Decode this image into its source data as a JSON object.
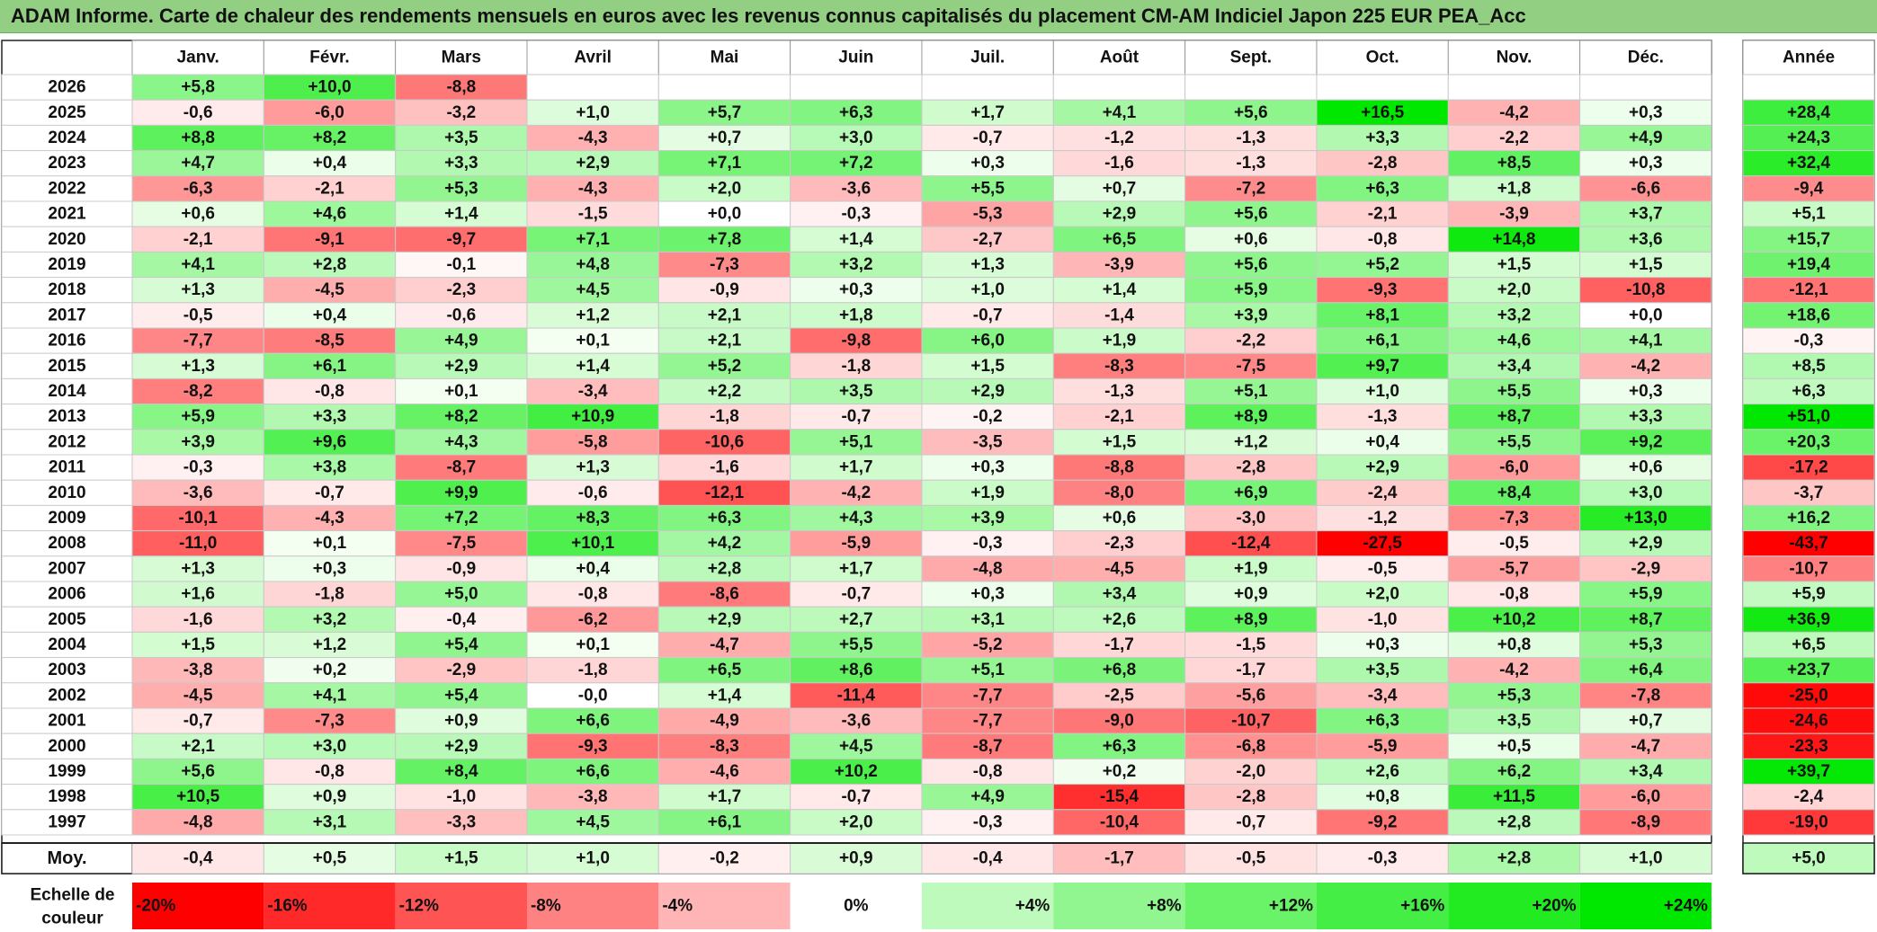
{
  "title": "ADAM Informe. Carte de chaleur des rendements mensuels en euros avec les revenus connus capitalisés du placement CM-AM Indiciel Japon 225 EUR PEA_Acc",
  "chart_data": {
    "type": "heatmap",
    "columns": [
      "Janv.",
      "Févr.",
      "Mars",
      "Avril",
      "Mai",
      "Juin",
      "Juil.",
      "Août",
      "Sept.",
      "Oct.",
      "Nov.",
      "Déc."
    ],
    "year_column": "Année",
    "average_label": "Moy.",
    "scale_label": [
      "Echelle de",
      "couleur"
    ],
    "rows": [
      {
        "year": "2026",
        "values": [
          "+5,8",
          "+10,0",
          "-8,8",
          "",
          "",
          "",
          "",
          "",
          "",
          "",
          "",
          ""
        ],
        "annual": ""
      },
      {
        "year": "2025",
        "values": [
          "-0,6",
          "-6,0",
          "-3,2",
          "+1,0",
          "+5,7",
          "+6,3",
          "+1,7",
          "+4,1",
          "+5,6",
          "+16,5",
          "-4,2",
          "+0,3"
        ],
        "annual": "+28,4"
      },
      {
        "year": "2024",
        "values": [
          "+8,8",
          "+8,2",
          "+3,5",
          "-4,3",
          "+0,7",
          "+3,0",
          "-0,7",
          "-1,2",
          "-1,3",
          "+3,3",
          "-2,2",
          "+4,9"
        ],
        "annual": "+24,3"
      },
      {
        "year": "2023",
        "values": [
          "+4,7",
          "+0,4",
          "+3,3",
          "+2,9",
          "+7,1",
          "+7,2",
          "+0,3",
          "-1,6",
          "-1,3",
          "-2,8",
          "+8,5",
          "+0,3"
        ],
        "annual": "+32,4"
      },
      {
        "year": "2022",
        "values": [
          "-6,3",
          "-2,1",
          "+5,3",
          "-4,3",
          "+2,0",
          "-3,6",
          "+5,5",
          "+0,7",
          "-7,2",
          "+6,3",
          "+1,8",
          "-6,6"
        ],
        "annual": "-9,4"
      },
      {
        "year": "2021",
        "values": [
          "+0,6",
          "+4,6",
          "+1,4",
          "-1,5",
          "+0,0",
          "-0,3",
          "-5,3",
          "+2,9",
          "+5,6",
          "-2,1",
          "-3,9",
          "+3,7"
        ],
        "annual": "+5,1"
      },
      {
        "year": "2020",
        "values": [
          "-2,1",
          "-9,1",
          "-9,7",
          "+7,1",
          "+7,8",
          "+1,4",
          "-2,7",
          "+6,5",
          "+0,6",
          "-0,8",
          "+14,8",
          "+3,6"
        ],
        "annual": "+15,7"
      },
      {
        "year": "2019",
        "values": [
          "+4,1",
          "+2,8",
          "-0,1",
          "+4,8",
          "-7,3",
          "+3,2",
          "+1,3",
          "-3,9",
          "+5,6",
          "+5,2",
          "+1,5",
          "+1,5"
        ],
        "annual": "+19,4"
      },
      {
        "year": "2018",
        "values": [
          "+1,3",
          "-4,5",
          "-2,3",
          "+4,5",
          "-0,9",
          "+0,3",
          "+1,0",
          "+1,4",
          "+5,9",
          "-9,3",
          "+2,0",
          "-10,8"
        ],
        "annual": "-12,1"
      },
      {
        "year": "2017",
        "values": [
          "-0,5",
          "+0,4",
          "-0,6",
          "+1,2",
          "+2,1",
          "+1,8",
          "-0,7",
          "-1,4",
          "+3,9",
          "+8,1",
          "+3,2",
          "+0,0"
        ],
        "annual": "+18,6"
      },
      {
        "year": "2016",
        "values": [
          "-7,7",
          "-8,5",
          "+4,9",
          "+0,1",
          "+2,1",
          "-9,8",
          "+6,0",
          "+1,9",
          "-2,2",
          "+6,1",
          "+4,6",
          "+4,1"
        ],
        "annual": "-0,3"
      },
      {
        "year": "2015",
        "values": [
          "+1,3",
          "+6,1",
          "+2,9",
          "+1,4",
          "+5,2",
          "-1,8",
          "+1,5",
          "-8,3",
          "-7,5",
          "+9,7",
          "+3,4",
          "-4,2"
        ],
        "annual": "+8,5"
      },
      {
        "year": "2014",
        "values": [
          "-8,2",
          "-0,8",
          "+0,1",
          "-3,4",
          "+2,2",
          "+3,5",
          "+2,9",
          "-1,3",
          "+5,1",
          "+1,0",
          "+5,5",
          "+0,3"
        ],
        "annual": "+6,3"
      },
      {
        "year": "2013",
        "values": [
          "+5,9",
          "+3,3",
          "+8,2",
          "+10,9",
          "-1,8",
          "-0,7",
          "-0,2",
          "-2,1",
          "+8,9",
          "-1,3",
          "+8,7",
          "+3,3"
        ],
        "annual": "+51,0"
      },
      {
        "year": "2012",
        "values": [
          "+3,9",
          "+9,6",
          "+4,3",
          "-5,8",
          "-10,6",
          "+5,1",
          "-3,5",
          "+1,5",
          "+1,2",
          "+0,4",
          "+5,5",
          "+9,2"
        ],
        "annual": "+20,3"
      },
      {
        "year": "2011",
        "values": [
          "-0,3",
          "+3,8",
          "-8,7",
          "+1,3",
          "-1,6",
          "+1,7",
          "+0,3",
          "-8,8",
          "-2,8",
          "+2,9",
          "-6,0",
          "+0,6"
        ],
        "annual": "-17,2"
      },
      {
        "year": "2010",
        "values": [
          "-3,6",
          "-0,7",
          "+9,9",
          "-0,6",
          "-12,1",
          "-4,2",
          "+1,9",
          "-8,0",
          "+6,9",
          "-2,4",
          "+8,4",
          "+3,0"
        ],
        "annual": "-3,7"
      },
      {
        "year": "2009",
        "values": [
          "-10,1",
          "-4,3",
          "+7,2",
          "+8,3",
          "+6,3",
          "+4,3",
          "+3,9",
          "+0,6",
          "-3,0",
          "-1,2",
          "-7,3",
          "+13,0"
        ],
        "annual": "+16,2"
      },
      {
        "year": "2008",
        "values": [
          "-11,0",
          "+0,1",
          "-7,5",
          "+10,1",
          "+4,2",
          "-5,9",
          "-0,3",
          "-2,3",
          "-12,4",
          "-27,5",
          "-0,5",
          "+2,9"
        ],
        "annual": "-43,7"
      },
      {
        "year": "2007",
        "values": [
          "+1,3",
          "+0,3",
          "-0,9",
          "+0,4",
          "+2,8",
          "+1,7",
          "-4,8",
          "-4,5",
          "+1,9",
          "-0,5",
          "-5,7",
          "-2,9"
        ],
        "annual": "-10,7"
      },
      {
        "year": "2006",
        "values": [
          "+1,6",
          "-1,8",
          "+5,0",
          "-0,8",
          "-8,6",
          "-0,7",
          "+0,3",
          "+3,4",
          "+0,9",
          "+2,0",
          "-0,8",
          "+5,9"
        ],
        "annual": "+5,9"
      },
      {
        "year": "2005",
        "values": [
          "-1,6",
          "+3,2",
          "-0,4",
          "-6,2",
          "+2,9",
          "+2,7",
          "+3,1",
          "+2,6",
          "+8,9",
          "-1,0",
          "+10,2",
          "+8,7"
        ],
        "annual": "+36,9"
      },
      {
        "year": "2004",
        "values": [
          "+1,5",
          "+1,2",
          "+5,4",
          "+0,1",
          "-4,7",
          "+5,5",
          "-5,2",
          "-1,7",
          "-1,5",
          "+0,3",
          "+0,8",
          "+5,3"
        ],
        "annual": "+6,5"
      },
      {
        "year": "2003",
        "values": [
          "-3,8",
          "+0,2",
          "-2,9",
          "-1,8",
          "+6,5",
          "+8,6",
          "+5,1",
          "+6,8",
          "-1,7",
          "+3,5",
          "-4,2",
          "+6,4"
        ],
        "annual": "+23,7"
      },
      {
        "year": "2002",
        "values": [
          "-4,5",
          "+4,1",
          "+5,4",
          "-0,0",
          "+1,4",
          "-11,4",
          "-7,7",
          "-2,5",
          "-5,6",
          "-3,4",
          "+5,3",
          "-7,8"
        ],
        "annual": "-25,0"
      },
      {
        "year": "2001",
        "values": [
          "-0,7",
          "-7,3",
          "+0,9",
          "+6,6",
          "-4,9",
          "-3,6",
          "-7,7",
          "-9,0",
          "-10,7",
          "+6,3",
          "+3,5",
          "+0,7"
        ],
        "annual": "-24,6"
      },
      {
        "year": "2000",
        "values": [
          "+2,1",
          "+3,0",
          "+2,9",
          "-9,3",
          "-8,3",
          "+4,5",
          "-8,7",
          "+6,3",
          "-6,8",
          "-5,9",
          "+0,5",
          "-4,7"
        ],
        "annual": "-23,3"
      },
      {
        "year": "1999",
        "values": [
          "+5,6",
          "-0,8",
          "+8,4",
          "+6,6",
          "-4,6",
          "+10,2",
          "-0,8",
          "+0,2",
          "-2,0",
          "+2,6",
          "+6,2",
          "+3,4"
        ],
        "annual": "+39,7"
      },
      {
        "year": "1998",
        "values": [
          "+10,5",
          "+0,9",
          "-1,0",
          "-3,8",
          "+1,7",
          "-0,7",
          "+4,9",
          "-15,4",
          "-2,8",
          "+0,8",
          "+11,5",
          "-6,0"
        ],
        "annual": "-2,4"
      },
      {
        "year": "1997",
        "values": [
          "-4,8",
          "+3,1",
          "-3,3",
          "+4,5",
          "+6,1",
          "+2,0",
          "-0,3",
          "-10,4",
          "-0,7",
          "-9,2",
          "+2,8",
          "-8,9"
        ],
        "annual": "-19,0"
      }
    ],
    "averages": {
      "values": [
        "-0,4",
        "+0,5",
        "+1,5",
        "+1,0",
        "-0,2",
        "+0,9",
        "-0,4",
        "-1,7",
        "-0,5",
        "-0,3",
        "+2,8",
        "+1,0"
      ],
      "annual": "+5,0"
    },
    "scale": [
      {
        "label": "-20%",
        "value": -20
      },
      {
        "label": "-16%",
        "value": -16
      },
      {
        "label": "-12%",
        "value": -12
      },
      {
        "label": "-8%",
        "value": -8
      },
      {
        "label": "-4%",
        "value": -4
      },
      {
        "label": "0%",
        "value": 0
      },
      {
        "label": "+4%",
        "value": 4
      },
      {
        "label": "+8%",
        "value": 8
      },
      {
        "label": "+12%",
        "value": 12
      },
      {
        "label": "+16%",
        "value": 16
      },
      {
        "label": "+20%",
        "value": 20
      },
      {
        "label": "+24%",
        "value": 24
      }
    ],
    "colors": {
      "negative": "#ff0000",
      "positive": "#00e800",
      "neutral": "#ffffff"
    }
  }
}
